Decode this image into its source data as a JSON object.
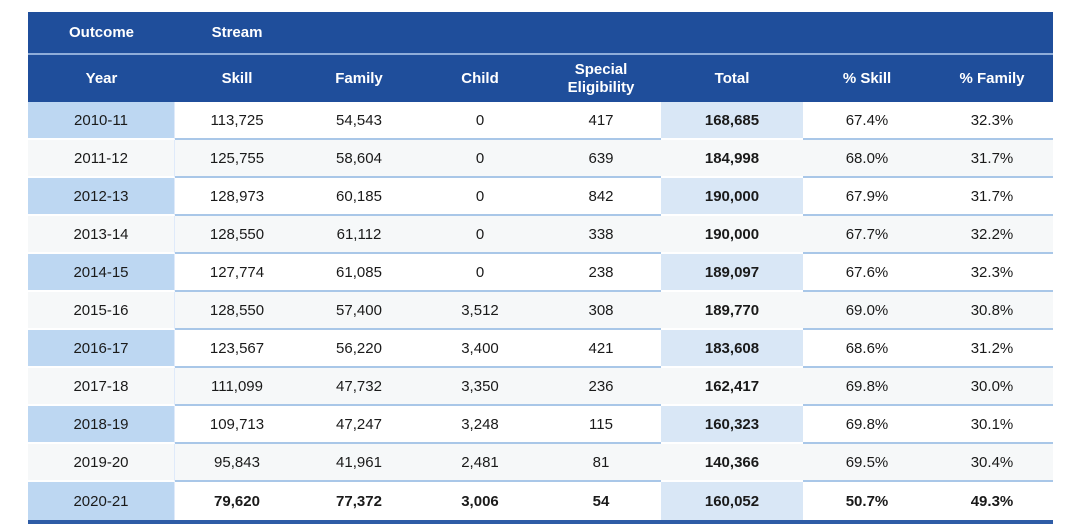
{
  "table": {
    "group_header": {
      "outcome_label": "Outcome",
      "stream_label": "Stream"
    },
    "columns": [
      "Year",
      "Skill",
      "Family",
      "Child",
      "Special Eligibility",
      "Total",
      "% Skill",
      "% Family"
    ],
    "rows": [
      {
        "year": "2010-11",
        "skill": "113,725",
        "family": "54,543",
        "child": "0",
        "special_eligibility": "417",
        "total": "168,685",
        "pct_skill": "67.4%",
        "pct_family": "32.3%"
      },
      {
        "year": "2011-12",
        "skill": "125,755",
        "family": "58,604",
        "child": "0",
        "special_eligibility": "639",
        "total": "184,998",
        "pct_skill": "68.0%",
        "pct_family": "31.7%"
      },
      {
        "year": "2012-13",
        "skill": "128,973",
        "family": "60,185",
        "child": "0",
        "special_eligibility": "842",
        "total": "190,000",
        "pct_skill": "67.9%",
        "pct_family": "31.7%"
      },
      {
        "year": "2013-14",
        "skill": "128,550",
        "family": "61,112",
        "child": "0",
        "special_eligibility": "338",
        "total": "190,000",
        "pct_skill": "67.7%",
        "pct_family": "32.2%"
      },
      {
        "year": "2014-15",
        "skill": "127,774",
        "family": "61,085",
        "child": "0",
        "special_eligibility": "238",
        "total": "189,097",
        "pct_skill": "67.6%",
        "pct_family": "32.3%"
      },
      {
        "year": "2015-16",
        "skill": "128,550",
        "family": "57,400",
        "child": "3,512",
        "special_eligibility": "308",
        "total": "189,770",
        "pct_skill": "69.0%",
        "pct_family": "30.8%"
      },
      {
        "year": "2016-17",
        "skill": "123,567",
        "family": "56,220",
        "child": "3,400",
        "special_eligibility": "421",
        "total": "183,608",
        "pct_skill": "68.6%",
        "pct_family": "31.2%"
      },
      {
        "year": "2017-18",
        "skill": "111,099",
        "family": "47,732",
        "child": "3,350",
        "special_eligibility": "236",
        "total": "162,417",
        "pct_skill": "69.8%",
        "pct_family": "30.0%"
      },
      {
        "year": "2018-19",
        "skill": "109,713",
        "family": "47,247",
        "child": "3,248",
        "special_eligibility": "115",
        "total": "160,323",
        "pct_skill": "69.8%",
        "pct_family": "30.1%"
      },
      {
        "year": "2019-20",
        "skill": "95,843",
        "family": "41,961",
        "child": "2,481",
        "special_eligibility": "81",
        "total": "140,366",
        "pct_skill": "69.5%",
        "pct_family": "30.4%"
      },
      {
        "year": "2020-21",
        "skill": "79,620",
        "family": "77,372",
        "child": "3,006",
        "special_eligibility": "54",
        "total": "160,052",
        "pct_skill": "50.7%",
        "pct_family": "49.3%"
      }
    ],
    "bold_row_year": "2020-21"
  },
  "colors": {
    "header_blue": "#1F4E9B",
    "year_column_blue": "#BDD7F2",
    "total_column_blue": "#D9E7F6",
    "row_divider_blue": "#A9C7E8",
    "header_divider_blue": "#8FADD9",
    "bottom_border_blue": "#2E5CA6",
    "alt_row_tint": "#F6F8F9",
    "text_color": "#1A1A1A"
  },
  "chart_data": {
    "type": "table",
    "columns": [
      "Year",
      "Skill",
      "Family",
      "Child",
      "Special Eligibility",
      "Total",
      "% Skill",
      "% Family"
    ],
    "rows": [
      [
        "2010-11",
        113725,
        54543,
        0,
        417,
        168685,
        67.4,
        32.3
      ],
      [
        "2011-12",
        125755,
        58604,
        0,
        639,
        184998,
        68.0,
        31.7
      ],
      [
        "2012-13",
        128973,
        60185,
        0,
        842,
        190000,
        67.9,
        31.7
      ],
      [
        "2013-14",
        128550,
        61112,
        0,
        338,
        190000,
        67.7,
        32.2
      ],
      [
        "2014-15",
        127774,
        61085,
        0,
        238,
        189097,
        67.6,
        32.3
      ],
      [
        "2015-16",
        128550,
        57400,
        3512,
        308,
        189770,
        69.0,
        30.8
      ],
      [
        "2016-17",
        123567,
        56220,
        3400,
        421,
        183608,
        68.6,
        31.2
      ],
      [
        "2017-18",
        111099,
        47732,
        3350,
        236,
        162417,
        69.8,
        30.0
      ],
      [
        "2018-19",
        109713,
        47247,
        3248,
        115,
        160323,
        69.8,
        30.1
      ],
      [
        "2019-20",
        95843,
        41961,
        2481,
        81,
        140366,
        69.5,
        30.4
      ],
      [
        "2020-21",
        79620,
        77372,
        3006,
        54,
        160052,
        50.7,
        49.3
      ]
    ],
    "notes": "Total column bold; 2020-21 row bold; Year and Total columns shaded light blue"
  }
}
